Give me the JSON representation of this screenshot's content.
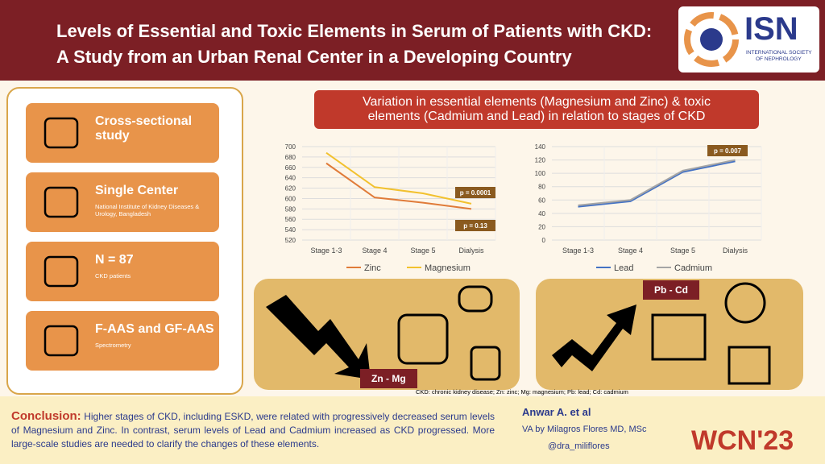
{
  "header": {
    "title_lines": [
      "Levels of Essential and Toxic Elements in Serum of Patients with CKD:",
      "A Study from an Urban Renal Center in a Developing Country"
    ],
    "logo": {
      "name": "ISN",
      "subtitle_lines": [
        "INTERNATIONAL SOCIETY",
        "OF NEPHROLOGY"
      ]
    }
  },
  "study": [
    {
      "title": "Cross-sectional study"
    },
    {
      "title": "Single Center",
      "detail": "National Institute of Kidney Diseases & Urology, Bangladesh"
    },
    {
      "title": "N = 87",
      "detail": "CKD patients"
    },
    {
      "title": "F-AAS and GF-AAS",
      "detail": "Spectrometry"
    }
  ],
  "findings_title": "Variation in essential elements (Magnesium and Zinc) & toxic elements (Cadmium and Lead) in relation to stages of CKD",
  "chart_data": [
    {
      "type": "line",
      "categories": [
        "Stage 1-3",
        "Stage 4",
        "Stage 5",
        "Dialysis"
      ],
      "series": [
        {
          "name": "Zinc",
          "color": "#e07b39",
          "values": [
            668,
            602,
            592,
            580
          ]
        },
        {
          "name": "Magnesium",
          "color": "#f2c12e",
          "values": [
            688,
            622,
            610,
            590
          ]
        }
      ],
      "ylim": [
        520,
        700
      ],
      "yticks": [
        520,
        540,
        560,
        580,
        600,
        620,
        640,
        660,
        680,
        700
      ],
      "grid": true,
      "annotations": [
        "p = 0.0001",
        "p = 0.13"
      ]
    },
    {
      "type": "line",
      "categories": [
        "Stage 1-3",
        "Stage 4",
        "Stage 5",
        "Dialysis"
      ],
      "series": [
        {
          "name": "Lead",
          "color": "#4472c4",
          "values": [
            50,
            58,
            102,
            118
          ]
        },
        {
          "name": "Cadmium",
          "color": "#a5a5a5",
          "values": [
            52,
            60,
            104,
            120
          ]
        }
      ],
      "ylim": [
        0,
        140
      ],
      "yticks": [
        0,
        20,
        40,
        60,
        80,
        100,
        120,
        140
      ],
      "grid": true,
      "annotations": [
        "p = 0.007"
      ]
    }
  ],
  "panels": {
    "decrease_label": "Zn - Mg",
    "increase_label": "Pb - Cd"
  },
  "abbreviations": "CKD: chronic kidney disease; Zn: zinc; Mg: magnesium; Pb: lead; Cd: cadmium",
  "conclusion": {
    "label": "Conclusion:",
    "text": "Higher stages of CKD, including ESKD, were related with progressively decreased serum levels of Magnesium and Zinc. In contrast, serum levels of Lead and Cadmium increased as CKD progressed. More large-scale studies are needed to clarify the changes of these elements."
  },
  "credits": {
    "author": "Anwar A. et al",
    "va": "VA by Milagros Flores MD, MSc",
    "handle": "@dra_miliflores"
  },
  "event": "WCN'23"
}
